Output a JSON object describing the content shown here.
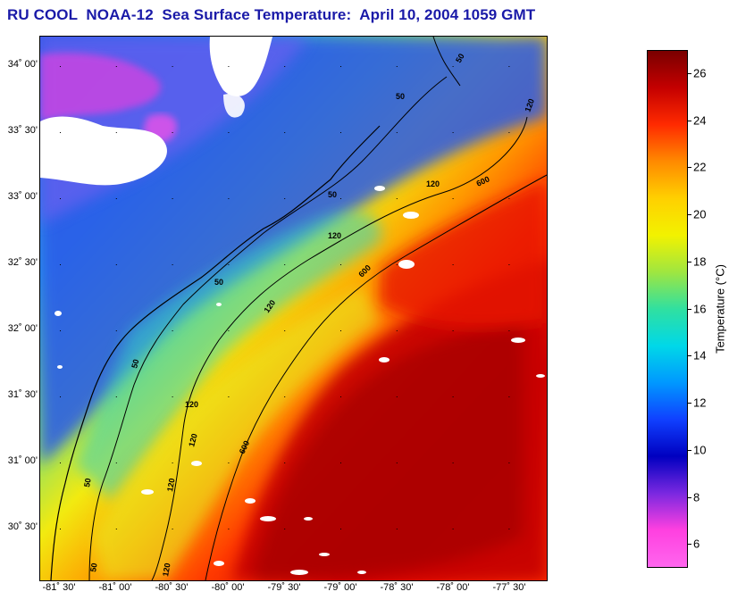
{
  "title": "RU COOL  NOAA-12  Sea Surface Temperature:  April 10, 2004 1059 GMT",
  "map": {
    "lat_labels": [
      "34˚ 00'",
      "33˚ 30'",
      "33˚ 00'",
      "32˚ 30'",
      "32˚ 00'",
      "31˚ 30'",
      "31˚ 00'",
      "30˚ 30'"
    ],
    "lon_labels": [
      "-81˚ 30'",
      "-81˚ 00'",
      "-80˚ 30'",
      "-80˚ 00'",
      "-79˚ 30'",
      "-79˚ 00'",
      "-78˚ 30'",
      "-78˚ 00'",
      "-77˚ 30'"
    ],
    "contour_labels": {
      "c50": "50",
      "c120": "120",
      "c600": "600"
    }
  },
  "colorbar": {
    "title": "Temperature (°C)",
    "ticks": [
      "26",
      "24",
      "22",
      "20",
      "18",
      "16",
      "14",
      "12",
      "10",
      "8",
      "6"
    ],
    "colors": [
      "#7a0000",
      "#c40000",
      "#ff2a00",
      "#ff8a00",
      "#ffd000",
      "#f2f200",
      "#9fe640",
      "#30e0a0",
      "#00d8e8",
      "#0098ff",
      "#1040ff",
      "#0000c0",
      "#7a28e0",
      "#ff40e0",
      "#ff66ee"
    ]
  }
}
